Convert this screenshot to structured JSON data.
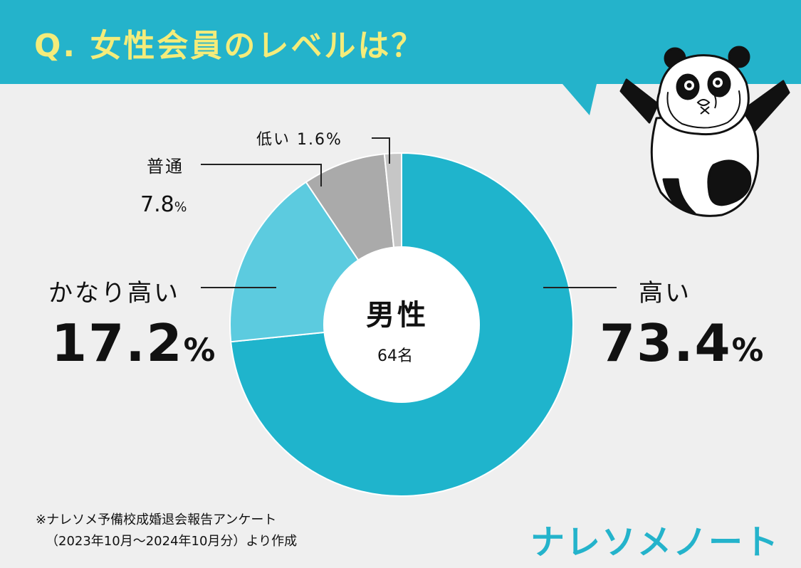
{
  "header": {
    "title": "Q. 女性会員のレベルは？"
  },
  "center": {
    "title": "男性",
    "n": "64名"
  },
  "labels": {
    "high": {
      "name": "高い",
      "value": "73.4",
      "unit": "%"
    },
    "very_high": {
      "name": "かなり高い",
      "value": "17.2",
      "unit": "%"
    },
    "normal": {
      "name": "普通",
      "value": "7.8",
      "unit": "%"
    },
    "low": {
      "name": "低い",
      "value": "1.6",
      "unit": "%"
    }
  },
  "footnote": {
    "line1": "※ナレソメ予備校成婚退会報告アンケート",
    "line2": "（2023年10月～2024年10月分）より作成"
  },
  "logo": {
    "text": "ナレソメノート"
  },
  "colors": {
    "banner": "#24b3cb",
    "title_text": "#f4ec7a",
    "high": "#1fb4cc",
    "very_high": "#5ccbdf",
    "normal": "#aaaaaa",
    "low": "#c6c6c6",
    "background": "#efefef"
  },
  "illustration": {
    "type": "crying-panda-icon"
  },
  "chart_data": {
    "type": "pie",
    "style": "donut",
    "start": "12 o'clock",
    "direction": "clockwise",
    "categories": [
      "高い",
      "かなり高い",
      "普通",
      "低い"
    ],
    "values": [
      73.4,
      17.2,
      7.8,
      1.6
    ],
    "unit": "%",
    "title": "Q. 女性会員のレベルは？",
    "center_label": "男性 64名"
  }
}
